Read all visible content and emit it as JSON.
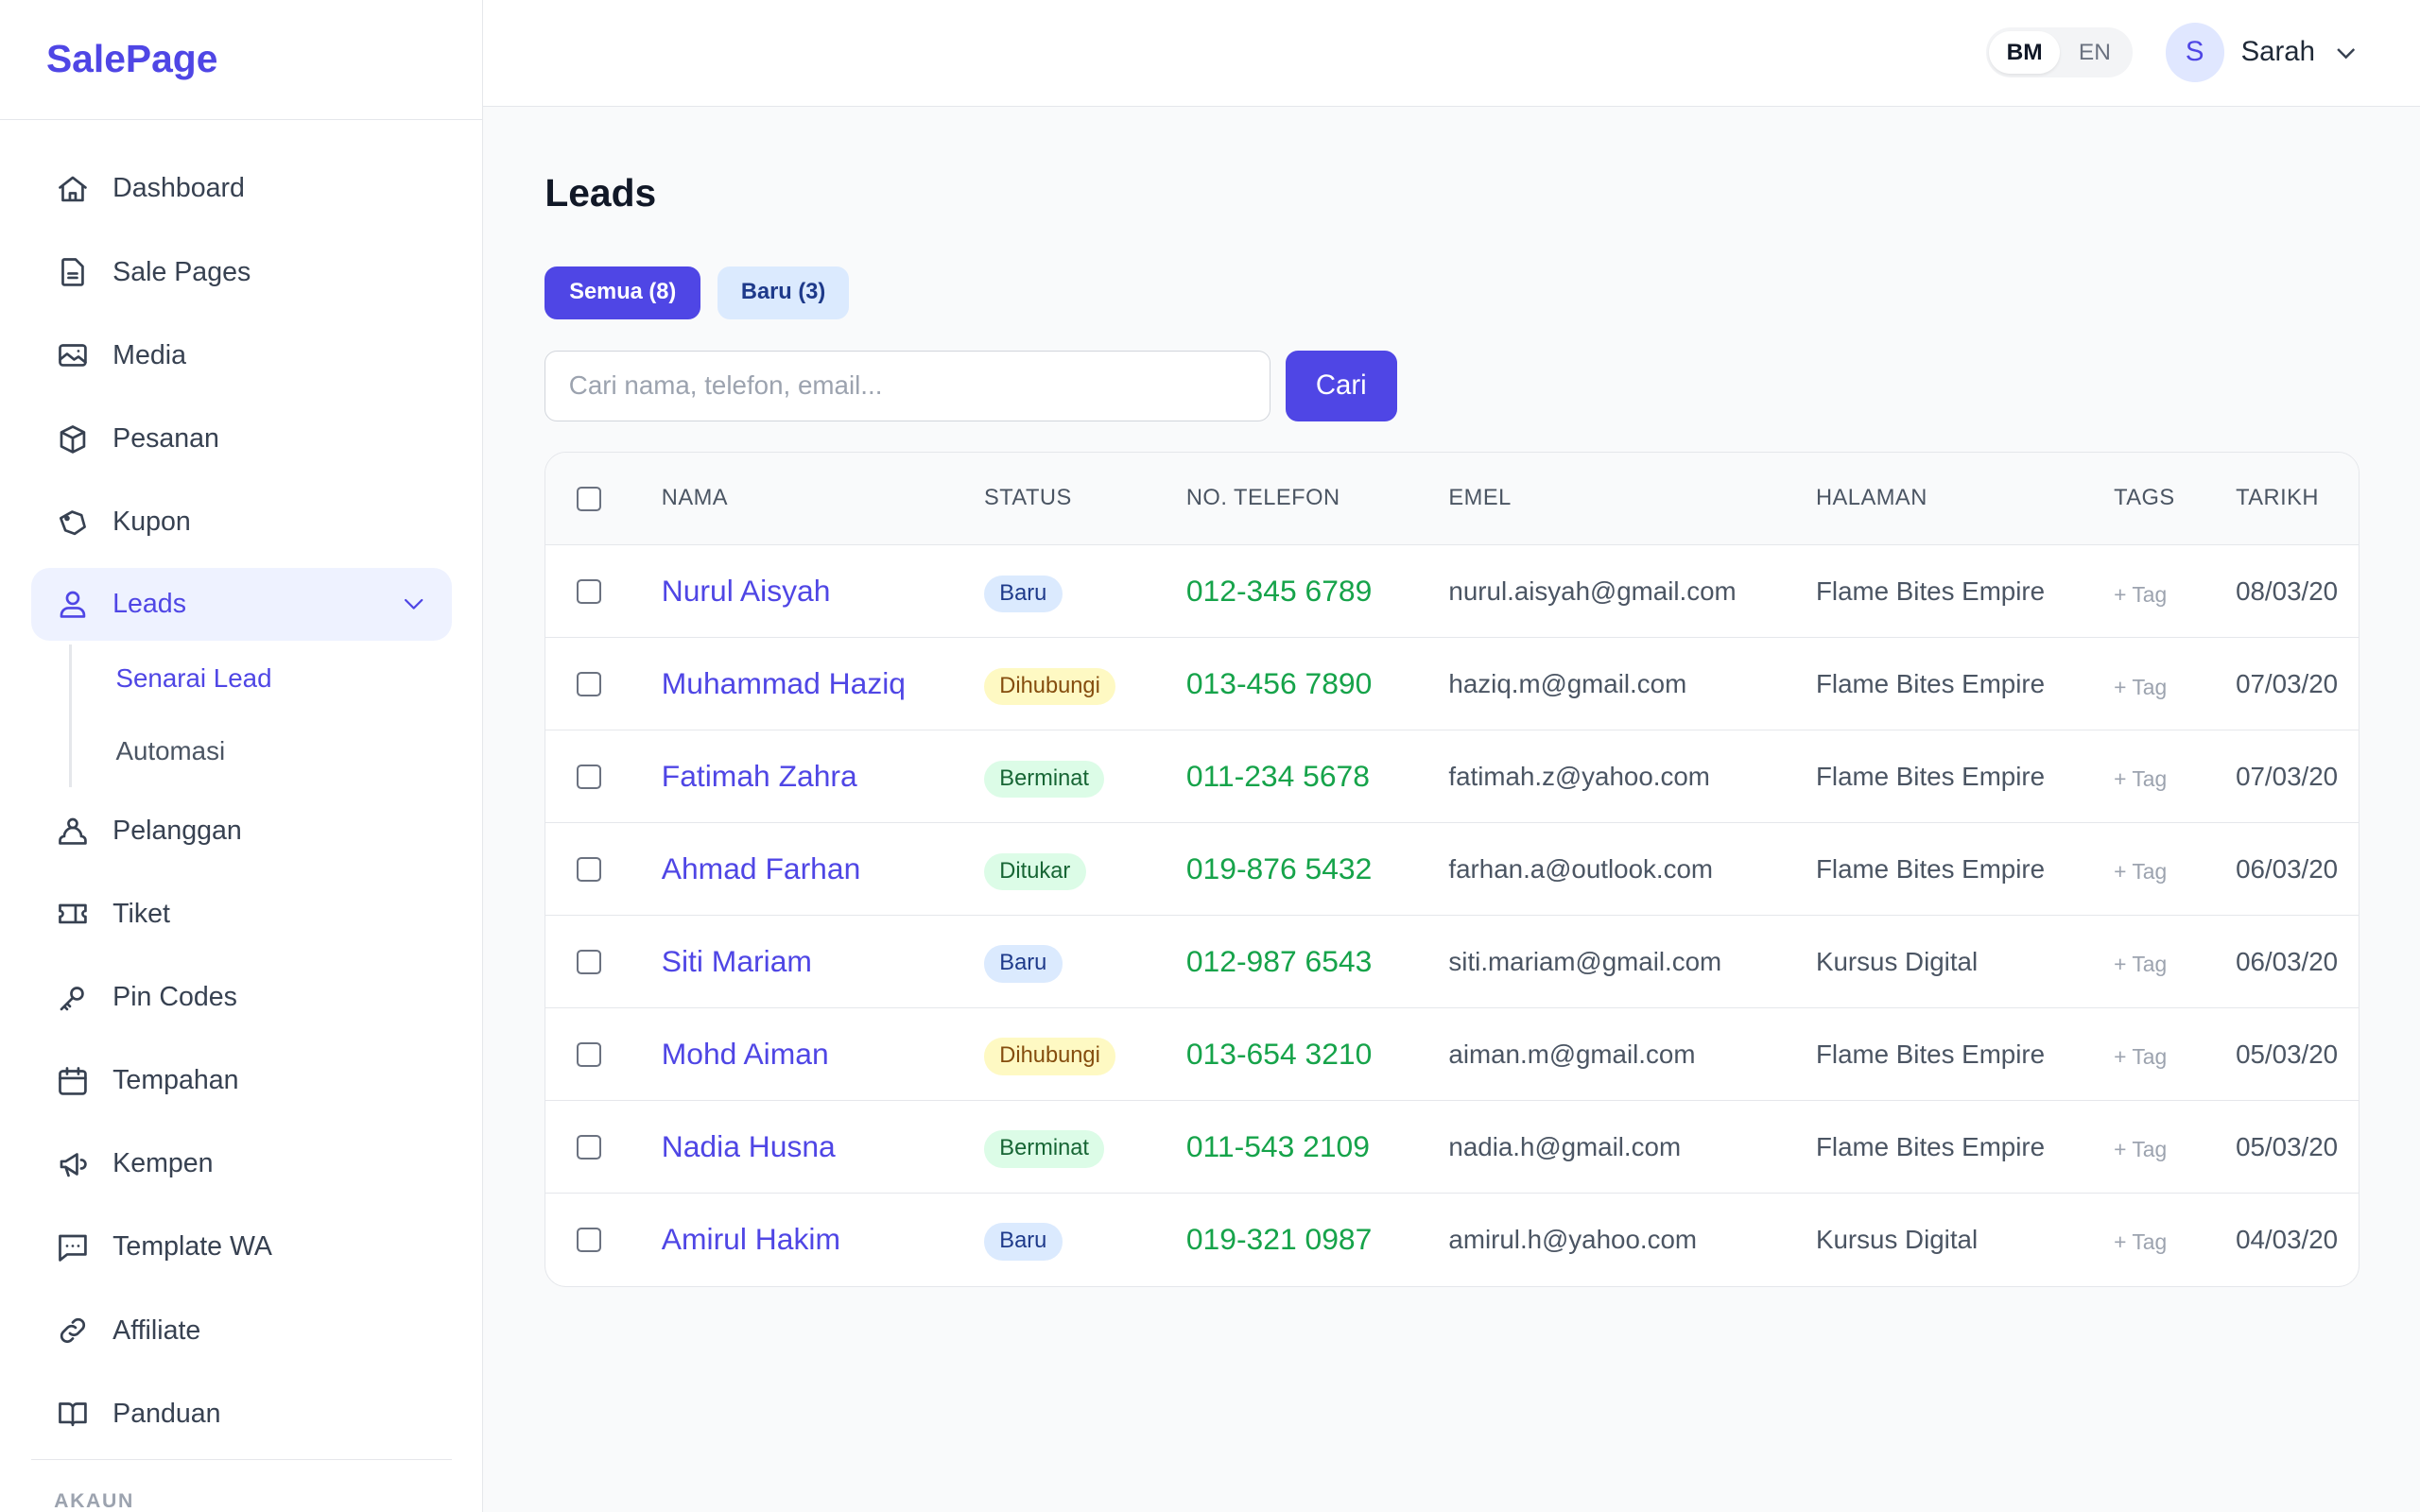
{
  "brand": "SalePage",
  "sidebar": {
    "items": [
      {
        "label": "Dashboard",
        "icon": "home-icon"
      },
      {
        "label": "Sale Pages",
        "icon": "document-icon"
      },
      {
        "label": "Media",
        "icon": "image-icon"
      },
      {
        "label": "Pesanan",
        "icon": "box-icon"
      },
      {
        "label": "Kupon",
        "icon": "tag-icon"
      },
      {
        "label": "Leads",
        "icon": "user-icon",
        "active": true
      },
      {
        "label": "Pelanggan",
        "icon": "users-icon"
      },
      {
        "label": "Tiket",
        "icon": "ticket-icon"
      },
      {
        "label": "Pin Codes",
        "icon": "key-icon"
      },
      {
        "label": "Tempahan",
        "icon": "calendar-icon"
      },
      {
        "label": "Kempen",
        "icon": "megaphone-icon"
      },
      {
        "label": "Template WA",
        "icon": "chat-icon"
      },
      {
        "label": "Affiliate",
        "icon": "link-icon"
      },
      {
        "label": "Panduan",
        "icon": "book-icon"
      }
    ],
    "sub_items": [
      {
        "label": "Senarai Lead",
        "active": true
      },
      {
        "label": "Automasi"
      }
    ],
    "section_label": "AKAUN"
  },
  "header": {
    "lang": [
      "BM",
      "EN"
    ],
    "lang_active": "BM",
    "avatar_initial": "S",
    "user_name": "Sarah"
  },
  "main": {
    "title": "Leads",
    "tabs": [
      {
        "label": "Semua (8)",
        "active": true
      },
      {
        "label": "Baru (3)"
      }
    ],
    "search": {
      "placeholder": "Cari nama, telefon, email...",
      "value": "",
      "button": "Cari"
    },
    "table": {
      "columns": [
        "NAMA",
        "STATUS",
        "NO. TELEFON",
        "EMEL",
        "HALAMAN",
        "TAGS",
        "TARIKH"
      ],
      "rows": [
        {
          "name": "Nurul Aisyah",
          "status": "Baru",
          "phone": "012-345 6789",
          "email": "nurul.aisyah@gmail.com",
          "page": "Flame Bites Empire",
          "tags": "+ Tag",
          "date": "08/03/20"
        },
        {
          "name": "Muhammad Haziq",
          "status": "Dihubungi",
          "phone": "013-456 7890",
          "email": "haziq.m@gmail.com",
          "page": "Flame Bites Empire",
          "tags": "+ Tag",
          "date": "07/03/20"
        },
        {
          "name": "Fatimah Zahra",
          "status": "Berminat",
          "phone": "011-234 5678",
          "email": "fatimah.z@yahoo.com",
          "page": "Flame Bites Empire",
          "tags": "+ Tag",
          "date": "07/03/20"
        },
        {
          "name": "Ahmad Farhan",
          "status": "Ditukar",
          "phone": "019-876 5432",
          "email": "farhan.a@outlook.com",
          "page": "Flame Bites Empire",
          "tags": "+ Tag",
          "date": "06/03/20"
        },
        {
          "name": "Siti Mariam",
          "status": "Baru",
          "phone": "012-987 6543",
          "email": "siti.mariam@gmail.com",
          "page": "Kursus Digital",
          "tags": "+ Tag",
          "date": "06/03/20"
        },
        {
          "name": "Mohd Aiman",
          "status": "Dihubungi",
          "phone": "013-654 3210",
          "email": "aiman.m@gmail.com",
          "page": "Flame Bites Empire",
          "tags": "+ Tag",
          "date": "05/03/20"
        },
        {
          "name": "Nadia Husna",
          "status": "Berminat",
          "phone": "011-543 2109",
          "email": "nadia.h@gmail.com",
          "page": "Flame Bites Empire",
          "tags": "+ Tag",
          "date": "05/03/20"
        },
        {
          "name": "Amirul Hakim",
          "status": "Baru",
          "phone": "019-321 0987",
          "email": "amirul.h@yahoo.com",
          "page": "Kursus Digital",
          "tags": "+ Tag",
          "date": "04/03/20"
        }
      ]
    }
  },
  "colors": {
    "accent": "#4f46e5",
    "phone": "#16a34a",
    "baru": "#dbeafe",
    "dihubungi": "#fef9c3",
    "berminat": "#dcfce7"
  }
}
